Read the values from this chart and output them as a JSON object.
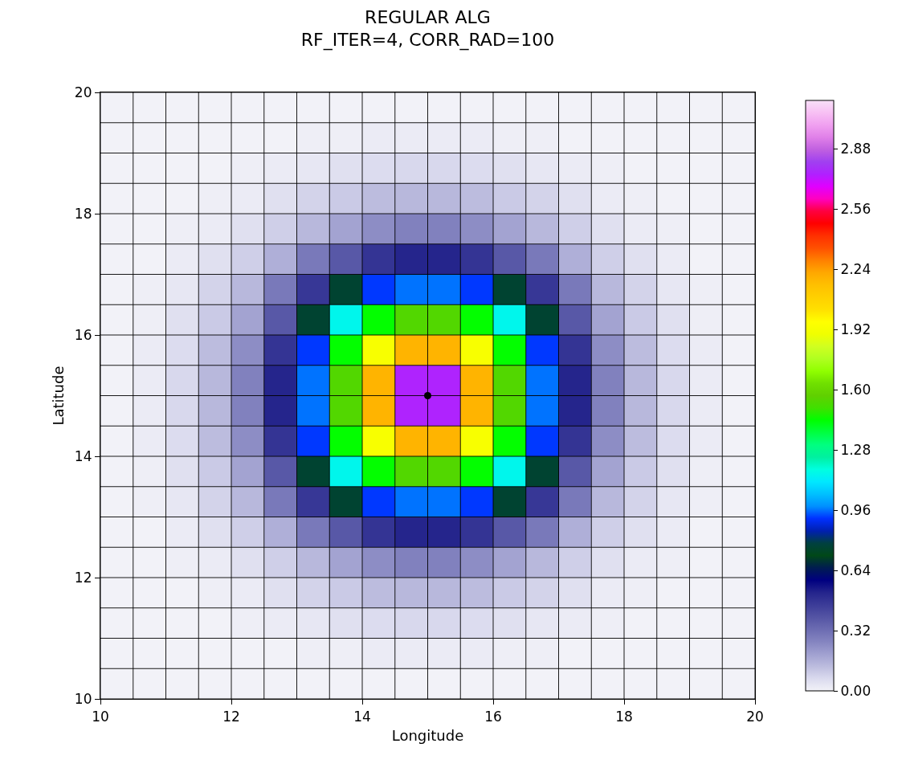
{
  "chart_data": {
    "type": "heatmap",
    "title": "REGULAR ALG",
    "subtitle": "RF_ITER=4, CORR_RAD=100",
    "xlabel": "Longitude",
    "ylabel": "Latitude",
    "x": [
      10.25,
      10.75,
      11.25,
      11.75,
      12.25,
      12.75,
      13.25,
      13.75,
      14.25,
      14.75,
      15.25,
      15.75,
      16.25,
      16.75,
      17.25,
      17.75,
      18.25,
      18.75,
      19.25,
      19.75
    ],
    "y": [
      19.75,
      19.25,
      18.75,
      18.25,
      17.75,
      17.25,
      16.75,
      16.25,
      15.75,
      15.25,
      14.75,
      14.25,
      13.75,
      13.25,
      12.75,
      12.25,
      11.75,
      11.25,
      10.75,
      10.25
    ],
    "cells": [
      [
        0,
        0,
        0,
        0,
        0,
        0,
        0,
        0,
        0,
        0,
        0,
        0,
        0,
        0,
        0,
        0,
        0,
        0,
        0,
        0
      ],
      [
        0,
        0,
        0,
        0,
        0,
        0,
        0.01,
        0.01,
        0.02,
        0.02,
        0.02,
        0.02,
        0.01,
        0.01,
        0,
        0,
        0,
        0,
        0,
        0
      ],
      [
        0,
        0,
        0,
        0,
        0.01,
        0.02,
        0.03,
        0.05,
        0.06,
        0.07,
        0.07,
        0.06,
        0.05,
        0.03,
        0.02,
        0.01,
        0,
        0,
        0,
        0
      ],
      [
        0,
        0,
        0,
        0.01,
        0.02,
        0.05,
        0.08,
        0.1,
        0.13,
        0.14,
        0.14,
        0.13,
        0.1,
        0.08,
        0.05,
        0.02,
        0.01,
        0,
        0,
        0
      ],
      [
        0,
        0,
        0.01,
        0.02,
        0.05,
        0.09,
        0.14,
        0.19,
        0.24,
        0.27,
        0.27,
        0.24,
        0.19,
        0.14,
        0.09,
        0.05,
        0.02,
        0.01,
        0,
        0
      ],
      [
        0,
        0,
        0.02,
        0.05,
        0.09,
        0.16,
        0.29,
        0.38,
        0.48,
        0.52,
        0.52,
        0.48,
        0.38,
        0.29,
        0.16,
        0.09,
        0.05,
        0.02,
        0,
        0
      ],
      [
        0,
        0.01,
        0.03,
        0.08,
        0.14,
        0.29,
        0.47,
        0.76,
        0.92,
        0.96,
        0.96,
        0.92,
        0.76,
        0.47,
        0.29,
        0.14,
        0.08,
        0.03,
        0.01,
        0
      ],
      [
        0,
        0.01,
        0.05,
        0.1,
        0.19,
        0.38,
        0.76,
        1.15,
        1.44,
        1.54,
        1.54,
        1.44,
        1.15,
        0.76,
        0.38,
        0.19,
        0.1,
        0.05,
        0.01,
        0
      ],
      [
        0,
        0.02,
        0.06,
        0.13,
        0.24,
        0.48,
        0.92,
        1.44,
        1.93,
        2.19,
        2.19,
        1.93,
        1.44,
        0.92,
        0.48,
        0.24,
        0.13,
        0.06,
        0.02,
        0
      ],
      [
        0,
        0.02,
        0.07,
        0.14,
        0.27,
        0.52,
        0.96,
        1.54,
        2.19,
        2.75,
        2.75,
        2.19,
        1.54,
        0.96,
        0.52,
        0.27,
        0.14,
        0.07,
        0.02,
        0
      ],
      [
        0,
        0.02,
        0.07,
        0.14,
        0.27,
        0.52,
        0.96,
        1.54,
        2.19,
        2.75,
        2.75,
        2.19,
        1.54,
        0.96,
        0.52,
        0.27,
        0.14,
        0.07,
        0.02,
        0
      ],
      [
        0,
        0.02,
        0.06,
        0.13,
        0.24,
        0.48,
        0.92,
        1.44,
        1.93,
        2.19,
        2.19,
        1.93,
        1.44,
        0.92,
        0.48,
        0.24,
        0.13,
        0.06,
        0.02,
        0
      ],
      [
        0,
        0.01,
        0.05,
        0.1,
        0.19,
        0.38,
        0.76,
        1.15,
        1.44,
        1.54,
        1.54,
        1.44,
        1.15,
        0.76,
        0.38,
        0.19,
        0.1,
        0.05,
        0.01,
        0
      ],
      [
        0,
        0.01,
        0.03,
        0.08,
        0.14,
        0.29,
        0.47,
        0.76,
        0.92,
        0.96,
        0.96,
        0.92,
        0.76,
        0.47,
        0.29,
        0.14,
        0.08,
        0.03,
        0.01,
        0
      ],
      [
        0,
        0,
        0.02,
        0.05,
        0.09,
        0.16,
        0.29,
        0.38,
        0.48,
        0.52,
        0.52,
        0.48,
        0.38,
        0.29,
        0.16,
        0.09,
        0.05,
        0.02,
        0,
        0
      ],
      [
        0,
        0,
        0.01,
        0.02,
        0.05,
        0.09,
        0.14,
        0.19,
        0.24,
        0.27,
        0.27,
        0.24,
        0.19,
        0.14,
        0.09,
        0.05,
        0.02,
        0.01,
        0,
        0
      ],
      [
        0,
        0,
        0,
        0.01,
        0.02,
        0.05,
        0.08,
        0.1,
        0.13,
        0.14,
        0.14,
        0.13,
        0.1,
        0.08,
        0.05,
        0.02,
        0.01,
        0,
        0,
        0
      ],
      [
        0,
        0,
        0,
        0,
        0.01,
        0.02,
        0.03,
        0.05,
        0.06,
        0.07,
        0.07,
        0.06,
        0.05,
        0.03,
        0.02,
        0.01,
        0,
        0,
        0,
        0
      ],
      [
        0,
        0,
        0,
        0,
        0,
        0,
        0.01,
        0.01,
        0.02,
        0.02,
        0.02,
        0.02,
        0.01,
        0.01,
        0,
        0,
        0,
        0,
        0,
        0
      ],
      [
        0,
        0,
        0,
        0,
        0,
        0,
        0,
        0,
        0,
        0,
        0,
        0,
        0,
        0,
        0,
        0,
        0,
        0,
        0,
        0
      ]
    ],
    "colors": [
      "#f2f2f8",
      "#dadaee",
      "#bcbcde",
      "#a0a0d0",
      "#8484c0",
      "#6c6cb2",
      "#5454a4",
      "#3c3c98",
      "#24248c",
      "#000080",
      "#001c50",
      "#004818",
      "#004040",
      "#0020b0",
      "#0030ff",
      "#0090ff",
      "#00c0ff",
      "#00e8ff",
      "#00ffe0",
      "#00f0a0",
      "#00ff80",
      "#00ff40",
      "#00ff00",
      "#40e000",
      "#60d000",
      "#70e000",
      "#90ff00",
      "#b0ff20",
      "#d0ff20",
      "#f0ff00",
      "#ffff00",
      "#ffe000",
      "#ffd000",
      "#ffc000",
      "#ffa800",
      "#ff8000",
      "#ff5000",
      "#ff3000",
      "#ff0000",
      "#ff0040",
      "#ff00c0",
      "#e000ff",
      "#b020ff",
      "#a040f0",
      "#c060e0",
      "#e080e8",
      "#f0a0f0",
      "#f8c0f4",
      "#f8e0f8"
    ],
    "clim": [
      0,
      3.136
    ],
    "cticks": [
      {
        "value": 0,
        "label": "0.00"
      },
      {
        "value": 0.32,
        "label": "0.32"
      },
      {
        "value": 0.64,
        "label": "0.64"
      },
      {
        "value": 0.96,
        "label": "0.96"
      },
      {
        "value": 1.28,
        "label": "1.28"
      },
      {
        "value": 1.6,
        "label": "1.60"
      },
      {
        "value": 1.92,
        "label": "1.92"
      },
      {
        "value": 2.24,
        "label": "2.24"
      },
      {
        "value": 2.56,
        "label": "2.56"
      },
      {
        "value": 2.88,
        "label": "2.88"
      }
    ],
    "series": [
      {
        "type": "scatter",
        "x": [
          15
        ],
        "values": [
          15
        ],
        "color": "#000000"
      }
    ],
    "marker": "circle",
    "xlim": [
      10,
      20
    ],
    "ylim": [
      10,
      20
    ],
    "xticks": [
      10,
      12,
      14,
      16,
      18,
      20
    ],
    "yticks": [
      10,
      12,
      14,
      16,
      18,
      20
    ],
    "grid": true
  }
}
